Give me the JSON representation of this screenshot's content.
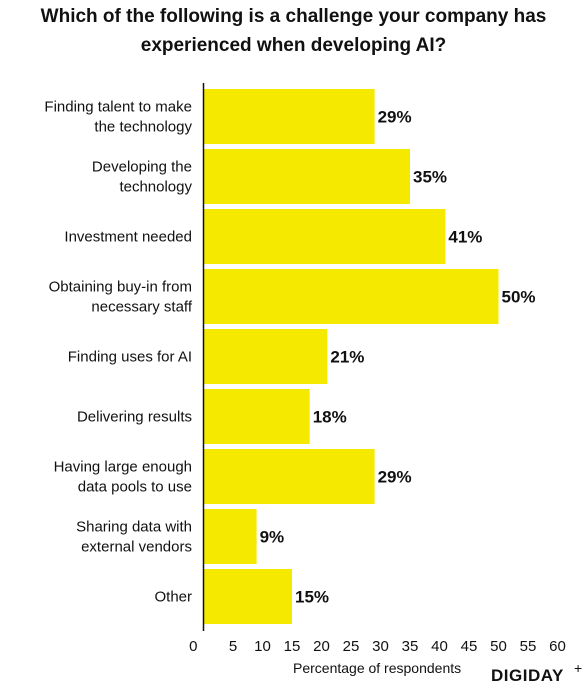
{
  "title": "Which of the following is a challenge your company has experienced when developing AI?",
  "brand": "DIGIDAY",
  "brand_suffix": "+",
  "chart_data": {
    "type": "bar",
    "orientation": "horizontal",
    "title": "Which of the following is a challenge your company has experienced when developing AI?",
    "xlabel": "Percentage of respondents",
    "ylabel": "",
    "xlim": [
      0,
      60
    ],
    "x_ticks": [
      0,
      5,
      10,
      15,
      20,
      25,
      30,
      35,
      40,
      45,
      50,
      55,
      60
    ],
    "grid": false,
    "legend": "none",
    "bar_color": "#F5E900",
    "categories": [
      [
        "Finding talent to make",
        "the technology"
      ],
      [
        "Developing the",
        "technology"
      ],
      [
        "Investment needed"
      ],
      [
        "Obtaining buy-in from",
        "necessary staff"
      ],
      [
        "Finding uses for AI"
      ],
      [
        "Delivering results"
      ],
      [
        "Having large enough",
        "data pools to use"
      ],
      [
        "Sharing data with",
        "external vendors"
      ],
      [
        "Other"
      ]
    ],
    "values": [
      29,
      35,
      41,
      50,
      21,
      18,
      29,
      9,
      15
    ],
    "value_labels": [
      "29%",
      "35%",
      "41%",
      "50%",
      "21%",
      "18%",
      "29%",
      "9%",
      "15%"
    ]
  }
}
